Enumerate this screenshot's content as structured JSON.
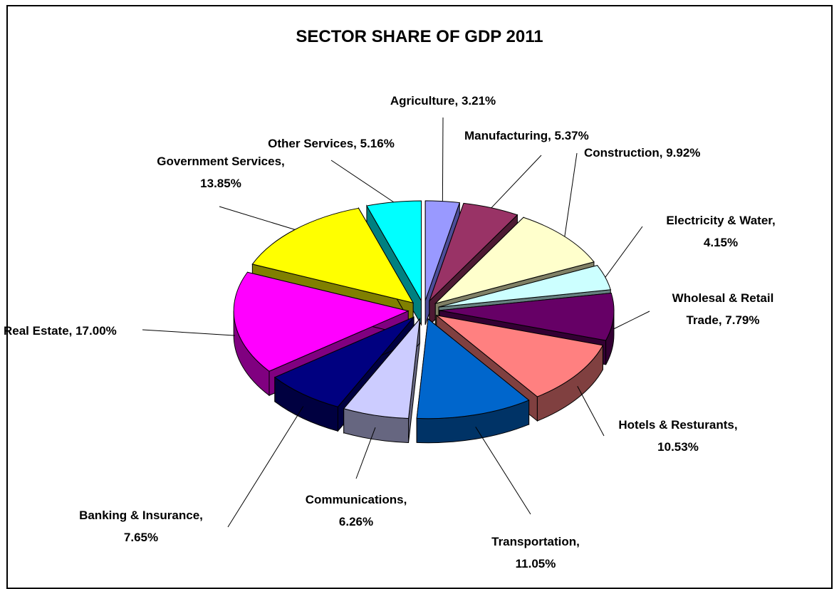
{
  "chart_data": {
    "type": "pie",
    "title": "SECTOR SHARE OF GDP 2011",
    "slices": [
      {
        "label": "Agriculture",
        "value": 3.21,
        "color": "#9999ff",
        "dark": "#4d4d99",
        "text": "Agriculture, 3.21%"
      },
      {
        "label": "Manufacturing",
        "value": 5.37,
        "color": "#993366",
        "dark": "#4d1a33",
        "text": "Manufacturing, 5.37%"
      },
      {
        "label": "Construction",
        "value": 9.92,
        "color": "#ffffcc",
        "dark": "#808066",
        "text": "Construction, 9.92%"
      },
      {
        "label": "Electricity & Water",
        "value": 4.15,
        "color": "#ccffff",
        "dark": "#668080",
        "text": "Electricity & Water, 4.15%"
      },
      {
        "label": "Wholesal & Retail Trade",
        "value": 7.79,
        "color": "#660066",
        "dark": "#330033",
        "text": "Wholesal & Retail Trade, 7.79%"
      },
      {
        "label": "Hotels & Resturants",
        "value": 10.53,
        "color": "#ff8080",
        "dark": "#804040",
        "text": "Hotels & Resturants, 10.53%"
      },
      {
        "label": "Transportation",
        "value": 11.05,
        "color": "#0066cc",
        "dark": "#003366",
        "text": "Transportation, 11.05%"
      },
      {
        "label": "Communications",
        "value": 6.26,
        "color": "#ccccff",
        "dark": "#666680",
        "text": "Communications, 6.26%"
      },
      {
        "label": "Banking & Insurance",
        "value": 7.65,
        "color": "#000080",
        "dark": "#000040",
        "text": "Banking & Insurance, 7.65%"
      },
      {
        "label": "Real Estate",
        "value": 17.0,
        "color": "#ff00ff",
        "dark": "#800080",
        "text": "Real Estate, 17.00%"
      },
      {
        "label": "Government Services",
        "value": 13.85,
        "color": "#ffff00",
        "dark": "#808000",
        "text": "Government Services, 13.85%"
      },
      {
        "label": "Other Services",
        "value": 5.16,
        "color": "#00ffff",
        "dark": "#008080",
        "text": "Other Services, 5.16%"
      }
    ]
  }
}
